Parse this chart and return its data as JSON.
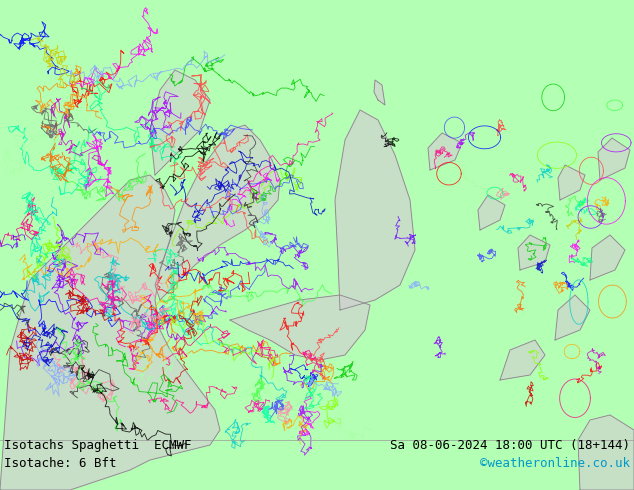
{
  "title": "",
  "bottom_left_line1": "Isotachs Spaghetti  ECMWF",
  "bottom_left_line2": "Isotache: 6 Bft",
  "bottom_right_line1": "Sa 08-06-2024 18:00 UTC (18+144)",
  "bottom_right_line2": "©weatheronline.co.uk",
  "background_color": "#b3ffb3",
  "land_color": "#d0d0d0",
  "coastline_color": "#888888",
  "text_color": "#000000",
  "credit_color": "#0099cc",
  "font_size": 9,
  "fig_width": 6.34,
  "fig_height": 4.9,
  "dpi": 100,
  "spaghetti_colors": [
    "#ff0000",
    "#00cc00",
    "#0000ff",
    "#ff00ff",
    "#00cccc",
    "#ff8800",
    "#8800ff",
    "#00ff88",
    "#ff0088",
    "#88ff00",
    "#ff4444",
    "#44ff44",
    "#4444ff",
    "#ffaa00",
    "#aa00ff",
    "#00ffaa",
    "#ff00aa",
    "#aaffaa",
    "#ff88aa",
    "#88aaff",
    "#000000",
    "#333333",
    "#666666",
    "#cc0000",
    "#0000cc",
    "#cc00cc",
    "#00cccc",
    "#cccc00",
    "#ff6600",
    "#6600ff"
  ]
}
